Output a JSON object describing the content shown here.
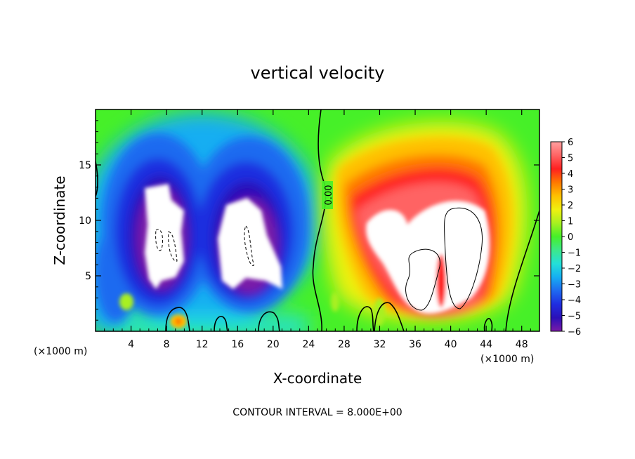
{
  "chart_data": {
    "type": "heatmap",
    "title": "vertical velocity",
    "xlabel": "X-coordinate",
    "ylabel": "Z-coordinate",
    "x_unit_left": "(×1000 m)",
    "x_unit_right": "(×1000 m)",
    "footer": "CONTOUR INTERVAL = 8.000E+00",
    "contour_label": "0.00",
    "xlim": [
      0,
      50
    ],
    "ylim": [
      0,
      20
    ],
    "x_ticks": [
      4,
      8,
      12,
      16,
      20,
      24,
      28,
      32,
      36,
      40,
      44,
      48
    ],
    "y_ticks": [
      5,
      10,
      15
    ],
    "colorbar": {
      "min": -6,
      "max": 6,
      "ticks": [
        6,
        5,
        4,
        3,
        2,
        1,
        0,
        -1,
        -2,
        -3,
        -4,
        -5,
        -6
      ],
      "tick_labels": [
        "6",
        "5",
        "4",
        "3",
        "2",
        "1",
        "0",
        "−1",
        "−2",
        "−3",
        "−4",
        "−5",
        "−6"
      ],
      "colors": [
        "#7a1aa8",
        "#2b10b8",
        "#1f2ee0",
        "#1e6af0",
        "#16aef2",
        "#24e0d8",
        "#3de88a",
        "#46f028",
        "#a8f020",
        "#f0f010",
        "#ffc000",
        "#ff7800",
        "#ff2020",
        "#ff6464",
        "#ffa0a0"
      ]
    },
    "features": [
      {
        "kind": "downdraft",
        "x_center": 7.5,
        "z_center": 9,
        "value_min": -6
      },
      {
        "kind": "downdraft",
        "x_center": 16.5,
        "z_center": 8.5,
        "value_min": -6
      },
      {
        "kind": "updraft",
        "x_center": 38,
        "z_center": 8,
        "value_max": 6
      }
    ]
  }
}
